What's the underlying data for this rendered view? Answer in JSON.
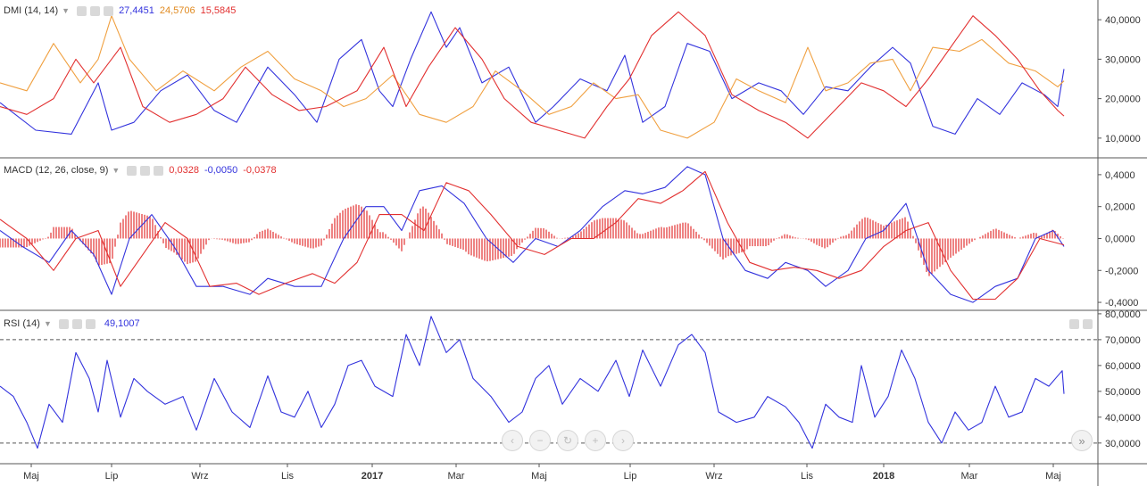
{
  "chart_data": [
    {
      "type": "line",
      "panel": "dmi",
      "title": "DMI (14, 14)",
      "legend_values": [
        "27,4451",
        "24,5706",
        "15,5845"
      ],
      "ylim": [
        5000,
        45000
      ],
      "y_ticks": [
        10000,
        20000,
        30000,
        40000
      ],
      "y_tick_labels": [
        "10,0000",
        "20,0000",
        "30,0000",
        "40,0000"
      ],
      "grid": false,
      "series": [
        {
          "role": "plus_di",
          "color": "#3333dd",
          "x": [
            0,
            40,
            80,
            110,
            125,
            150,
            180,
            210,
            240,
            265,
            300,
            330,
            355,
            380,
            405,
            425,
            440,
            460,
            483,
            500,
            515,
            540,
            570,
            600,
            620,
            650,
            680,
            700,
            720,
            745,
            770,
            795,
            820,
            850,
            875,
            900,
            925,
            950,
            975,
            1000,
            1020,
            1045,
            1070,
            1095,
            1120,
            1145,
            1170,
            1185,
            1192
          ],
          "y": [
            19000,
            12000,
            11000,
            24000,
            12000,
            14000,
            22000,
            26000,
            17000,
            14000,
            28000,
            21000,
            14000,
            30000,
            35000,
            22000,
            18000,
            30000,
            42000,
            33000,
            38000,
            24000,
            28000,
            14000,
            18000,
            25000,
            22000,
            31000,
            14000,
            18000,
            34000,
            32000,
            20000,
            24000,
            22000,
            16000,
            23000,
            22000,
            28000,
            33000,
            29000,
            13000,
            11000,
            20000,
            16000,
            24000,
            21000,
            18000,
            27500
          ]
        },
        {
          "role": "minus_di",
          "color": "#f0a040",
          "x": [
            0,
            30,
            60,
            90,
            110,
            125,
            145,
            175,
            205,
            240,
            270,
            300,
            330,
            360,
            385,
            410,
            440,
            470,
            500,
            530,
            555,
            585,
            615,
            640,
            665,
            690,
            715,
            740,
            770,
            800,
            825,
            850,
            880,
            905,
            925,
            950,
            975,
            1000,
            1020,
            1045,
            1075,
            1100,
            1130,
            1160,
            1185,
            1192
          ],
          "y": [
            24000,
            22000,
            34000,
            24000,
            30000,
            41000,
            30000,
            22000,
            27000,
            22000,
            28000,
            32000,
            25000,
            22000,
            18000,
            20000,
            26000,
            16000,
            14000,
            18000,
            27000,
            22000,
            16000,
            18000,
            24000,
            20000,
            21000,
            12000,
            10000,
            14000,
            25000,
            22000,
            19000,
            33000,
            22000,
            24000,
            29000,
            30000,
            22000,
            33000,
            32000,
            35000,
            29000,
            27000,
            23000,
            24500
          ]
        },
        {
          "role": "adx",
          "color": "#e23030",
          "x": [
            0,
            30,
            60,
            85,
            105,
            135,
            160,
            190,
            220,
            250,
            275,
            305,
            335,
            365,
            400,
            430,
            455,
            480,
            510,
            540,
            565,
            595,
            625,
            655,
            680,
            705,
            730,
            760,
            790,
            820,
            850,
            880,
            905,
            935,
            965,
            990,
            1015,
            1040,
            1065,
            1090,
            1115,
            1140,
            1165,
            1185,
            1192
          ],
          "y": [
            18000,
            16000,
            20000,
            30000,
            24000,
            33000,
            18000,
            14000,
            16000,
            20000,
            28000,
            21000,
            17000,
            18000,
            22000,
            33000,
            18000,
            28000,
            38000,
            30000,
            20000,
            14000,
            12000,
            10000,
            18000,
            25000,
            36000,
            42000,
            36000,
            21000,
            17000,
            14000,
            10000,
            17000,
            24000,
            22000,
            18000,
            25000,
            33000,
            41000,
            36000,
            30000,
            22000,
            17000,
            15600
          ]
        }
      ]
    },
    {
      "type": "line+bar",
      "panel": "macd",
      "title": "MACD (12, 26, close, 9)",
      "legend_values": [
        "0,0328",
        "-0,0050",
        "-0,0378"
      ],
      "ylim": [
        -0.45,
        0.5
      ],
      "y_ticks": [
        -0.4,
        -0.2,
        0.0,
        0.2,
        0.4
      ],
      "y_tick_labels": [
        "-0,4000",
        "-0,2000",
        "0,0000",
        "0,2000",
        "0,4000"
      ],
      "grid": false,
      "series": [
        {
          "role": "macd",
          "color": "#3333dd",
          "x": [
            0,
            25,
            55,
            80,
            105,
            125,
            145,
            170,
            195,
            220,
            250,
            280,
            300,
            330,
            360,
            385,
            410,
            430,
            450,
            470,
            495,
            520,
            545,
            575,
            600,
            625,
            650,
            675,
            700,
            720,
            745,
            770,
            790,
            810,
            835,
            860,
            880,
            905,
            925,
            950,
            970,
            990,
            1015,
            1040,
            1065,
            1090,
            1115,
            1140,
            1160,
            1180,
            1192
          ],
          "y": [
            0.05,
            -0.05,
            -0.15,
            0.05,
            -0.1,
            -0.35,
            0.0,
            0.15,
            -0.05,
            -0.3,
            -0.3,
            -0.35,
            -0.25,
            -0.3,
            -0.3,
            0.0,
            0.2,
            0.2,
            0.05,
            0.3,
            0.33,
            0.22,
            0.0,
            -0.15,
            0.0,
            -0.05,
            0.05,
            0.2,
            0.3,
            0.28,
            0.32,
            0.45,
            0.4,
            0.0,
            -0.2,
            -0.25,
            -0.15,
            -0.2,
            -0.3,
            -0.2,
            0.0,
            0.05,
            0.22,
            -0.2,
            -0.35,
            -0.4,
            -0.3,
            -0.25,
            0.0,
            0.05,
            -0.05
          ]
        },
        {
          "role": "signal",
          "color": "#e23030",
          "x": [
            0,
            30,
            60,
            85,
            110,
            135,
            160,
            185,
            210,
            235,
            265,
            290,
            320,
            350,
            375,
            400,
            425,
            450,
            475,
            500,
            525,
            550,
            580,
            610,
            640,
            665,
            690,
            715,
            740,
            765,
            790,
            815,
            840,
            865,
            890,
            915,
            940,
            965,
            990,
            1015,
            1040,
            1065,
            1090,
            1115,
            1140,
            1165,
            1192
          ],
          "y": [
            0.12,
            0.0,
            -0.2,
            0.0,
            0.05,
            -0.3,
            -0.1,
            0.1,
            0.0,
            -0.3,
            -0.28,
            -0.35,
            -0.28,
            -0.22,
            -0.28,
            -0.15,
            0.15,
            0.15,
            0.05,
            0.35,
            0.3,
            0.15,
            -0.05,
            -0.1,
            0.0,
            0.0,
            0.1,
            0.25,
            0.22,
            0.3,
            0.42,
            0.1,
            -0.15,
            -0.2,
            -0.18,
            -0.2,
            -0.25,
            -0.2,
            -0.05,
            0.05,
            0.1,
            -0.2,
            -0.38,
            -0.38,
            -0.25,
            0.0,
            -0.04
          ]
        },
        {
          "role": "histogram",
          "color": "#e23030",
          "from_x": 0,
          "to_x": 1192,
          "step": 3
        }
      ]
    },
    {
      "type": "line",
      "panel": "rsi",
      "title": "RSI (14)",
      "legend_values": [
        "49,1007"
      ],
      "ylim": [
        22000,
        81000
      ],
      "y_ticks": [
        30000,
        40000,
        50000,
        60000,
        70000,
        80000
      ],
      "y_tick_labels": [
        "30,0000",
        "40,0000",
        "50,0000",
        "60,0000",
        "70,0000",
        "80,0000"
      ],
      "reference_lines": [
        30000,
        70000
      ],
      "grid": false,
      "series": [
        {
          "role": "rsi",
          "color": "#3333dd",
          "x": [
            0,
            15,
            30,
            42,
            55,
            70,
            85,
            100,
            110,
            120,
            135,
            150,
            165,
            185,
            205,
            220,
            240,
            260,
            280,
            300,
            315,
            330,
            345,
            360,
            375,
            390,
            405,
            420,
            440,
            455,
            470,
            483,
            500,
            515,
            530,
            550,
            570,
            585,
            600,
            615,
            630,
            650,
            670,
            690,
            705,
            720,
            740,
            760,
            775,
            790,
            805,
            825,
            845,
            860,
            880,
            895,
            910,
            925,
            940,
            955,
            965,
            980,
            995,
            1010,
            1025,
            1040,
            1055,
            1070,
            1085,
            1100,
            1115,
            1130,
            1145,
            1160,
            1175,
            1190,
            1192
          ],
          "y": [
            52000,
            48000,
            38000,
            28000,
            45000,
            38000,
            65000,
            55000,
            42000,
            62000,
            40000,
            55000,
            50000,
            45000,
            48000,
            35000,
            55000,
            42000,
            36000,
            56000,
            42000,
            40000,
            50000,
            36000,
            45000,
            60000,
            62000,
            52000,
            48000,
            72000,
            60000,
            79000,
            65000,
            70000,
            55000,
            48000,
            38000,
            42000,
            55000,
            60000,
            45000,
            55000,
            50000,
            62000,
            48000,
            66000,
            52000,
            68000,
            72000,
            65000,
            42000,
            38000,
            40000,
            48000,
            44000,
            38000,
            28000,
            45000,
            40000,
            38000,
            60000,
            40000,
            48000,
            66000,
            55000,
            38000,
            30000,
            42000,
            35000,
            38000,
            52000,
            40000,
            42000,
            55000,
            52000,
            58000,
            49000
          ]
        }
      ]
    }
  ],
  "x_axis": {
    "labels": [
      "Maj",
      "Lip",
      "Wrz",
      "Lis",
      "2017",
      "Mar",
      "Maj",
      "Lip",
      "Wrz",
      "Lis",
      "2018",
      "Mar",
      "Maj"
    ],
    "bold": [
      false,
      false,
      false,
      false,
      true,
      false,
      false,
      false,
      false,
      false,
      true,
      false,
      false
    ]
  },
  "icons": {
    "legend_controls": [
      "visibility-icon",
      "settings-icon",
      "close-icon"
    ],
    "navigation": [
      "scroll-left-icon",
      "zoom-out-icon",
      "reset-icon",
      "zoom-in-icon",
      "scroll-right-icon"
    ],
    "pane": [
      "move-pane-up-icon",
      "move-pane-down-icon"
    ],
    "realtime": "scroll-to-realtime-icon"
  },
  "nav_glyphs": [
    "‹",
    "−",
    "↻",
    "+",
    "›"
  ],
  "realtime_glyph": "»",
  "colors": {
    "blue": "#3333dd",
    "orange": "#f0a040",
    "red": "#e23030",
    "axis": "#555555"
  }
}
